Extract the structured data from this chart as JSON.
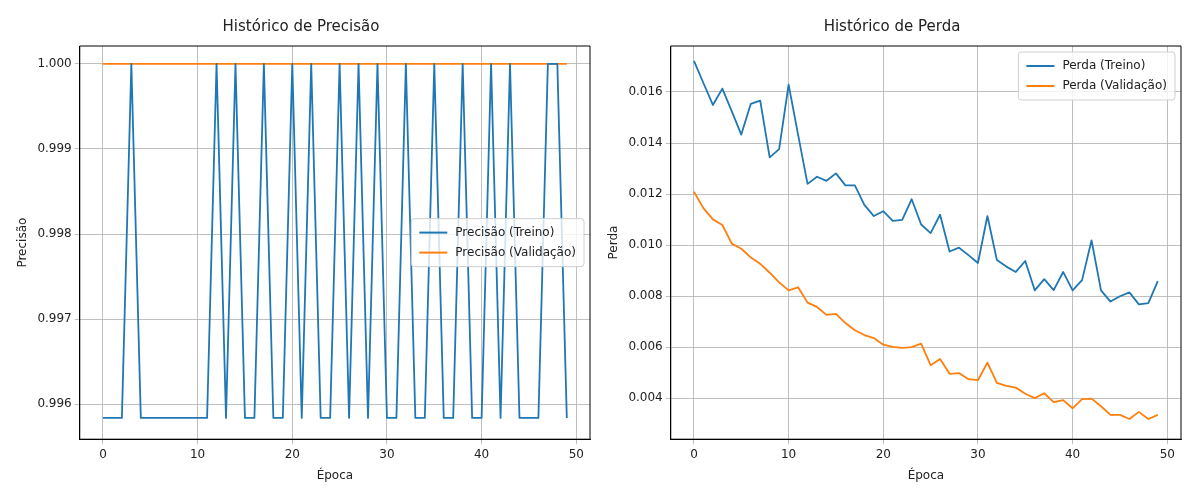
{
  "chart_data": [
    {
      "type": "line",
      "title": "Histórico de Precisão",
      "xlabel": "Época",
      "ylabel": "Precisão",
      "x": [
        0,
        1,
        2,
        3,
        4,
        5,
        6,
        7,
        8,
        9,
        10,
        11,
        12,
        13,
        14,
        15,
        16,
        17,
        18,
        19,
        20,
        21,
        22,
        23,
        24,
        25,
        26,
        27,
        28,
        29,
        30,
        31,
        32,
        33,
        34,
        35,
        36,
        37,
        38,
        39,
        40,
        41,
        42,
        43,
        44,
        45,
        46,
        47,
        48,
        49
      ],
      "series": [
        {
          "name": "Precisão (Treino)",
          "color": "#1f77b4",
          "values": [
            0.99584,
            0.99584,
            0.99584,
            1,
            0.99584,
            0.99584,
            0.99584,
            0.99584,
            0.99584,
            0.99584,
            0.99584,
            0.99584,
            1,
            0.99584,
            1,
            0.99584,
            0.99584,
            1,
            0.99584,
            0.99584,
            1,
            0.99584,
            1,
            0.99584,
            0.99584,
            1,
            0.99584,
            1,
            0.99584,
            1,
            0.99584,
            0.99584,
            1,
            0.99584,
            0.99584,
            1,
            0.99584,
            0.99584,
            1,
            0.99584,
            0.99584,
            1,
            0.99584,
            1,
            0.99584,
            0.99584,
            0.99584,
            1,
            1,
            0.99584
          ]
        },
        {
          "name": "Precisão (Validação)",
          "color": "#ff7f0e",
          "values": [
            1,
            1,
            1,
            1,
            1,
            1,
            1,
            1,
            1,
            1,
            1,
            1,
            1,
            1,
            1,
            1,
            1,
            1,
            1,
            1,
            1,
            1,
            1,
            1,
            1,
            1,
            1,
            1,
            1,
            1,
            1,
            1,
            1,
            1,
            1,
            1,
            1,
            1,
            1,
            1,
            1,
            1,
            1,
            1,
            1,
            1,
            1,
            1,
            1,
            1
          ]
        }
      ],
      "xlim": [
        -2.45,
        51.45
      ],
      "xticks": [
        0,
        10,
        20,
        30,
        40,
        50
      ],
      "ylim": [
        0.99559,
        1.00021
      ],
      "yticks": [
        0.996,
        0.997,
        0.998,
        0.999,
        {
          "value": 1,
          "label": "1.000"
        }
      ],
      "grid": true,
      "legend": "center right",
      "marker": "none",
      "line_style": "solid"
    },
    {
      "type": "line",
      "title": "Histórico de Perda",
      "xlabel": "Época",
      "ylabel": "Perda",
      "x": [
        0,
        1,
        2,
        3,
        4,
        5,
        6,
        7,
        8,
        9,
        10,
        11,
        12,
        13,
        14,
        15,
        16,
        17,
        18,
        19,
        20,
        21,
        22,
        23,
        24,
        25,
        26,
        27,
        28,
        29,
        30,
        31,
        32,
        33,
        34,
        35,
        36,
        37,
        38,
        39,
        40,
        41,
        42,
        43,
        44,
        45,
        46,
        47,
        48,
        49
      ],
      "series": [
        {
          "name": "Perda (Treino)",
          "color": "#1f77b4",
          "values": [
            0.01722,
            0.01635,
            0.01549,
            0.01613,
            0.01524,
            0.01433,
            0.01553,
            0.01566,
            0.01344,
            0.01376,
            0.01629,
            0.01433,
            0.0124,
            0.01268,
            0.01252,
            0.01281,
            0.01234,
            0.01234,
            0.01158,
            0.01114,
            0.01133,
            0.01095,
            0.01099,
            0.0118,
            0.01081,
            0.01047,
            0.01119,
            0.00975,
            0.0099,
            0.00961,
            0.0093,
            0.01114,
            0.00942,
            0.00916,
            0.00895,
            0.00938,
            0.00823,
            0.00867,
            0.00824,
            0.00895,
            0.00823,
            0.00863,
            0.01019,
            0.00823,
            0.00779,
            0.008,
            0.00815,
            0.00768,
            0.00773,
            0.00859
          ]
        },
        {
          "name": "Perda (Validação)",
          "color": "#ff7f0e",
          "values": [
            0.01209,
            0.01145,
            0.01101,
            0.01079,
            0.01006,
            0.00986,
            0.00952,
            0.00927,
            0.00892,
            0.00854,
            0.00823,
            0.00835,
            0.00775,
            0.00758,
            0.00727,
            0.00731,
            0.00695,
            0.00667,
            0.00648,
            0.00636,
            0.0061,
            0.00602,
            0.00598,
            0.00601,
            0.00614,
            0.0053,
            0.00554,
            0.00496,
            0.00499,
            0.00475,
            0.00471,
            0.0054,
            0.00461,
            0.00449,
            0.00442,
            0.00418,
            0.00401,
            0.0042,
            0.00385,
            0.00393,
            0.00361,
            0.00397,
            0.00399,
            0.00369,
            0.00335,
            0.00335,
            0.00319,
            0.00347,
            0.00319,
            0.00335
          ]
        }
      ],
      "xlim": [
        -2.45,
        51.45
      ],
      "xticks": [
        0,
        10,
        20,
        30,
        40,
        50
      ],
      "ylim": [
        0.0024,
        0.0178
      ],
      "yticks": [
        0.004,
        0.006,
        0.008,
        {
          "value": 0.01,
          "label": "0.010"
        },
        0.012,
        0.014,
        0.016
      ],
      "grid": true,
      "legend": "top right",
      "marker": "none",
      "line_style": "solid"
    }
  ]
}
